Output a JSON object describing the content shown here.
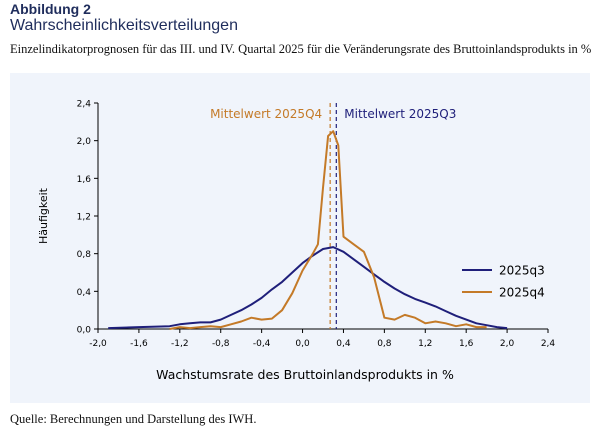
{
  "figure": {
    "label": "Abbildung 2",
    "title": "Wahrscheinlichkeitsverteilungen",
    "subtitle": "Einzelindikatorprognosen für das III. und IV. Quartal 2025 für die Veränderungsrate des Bruttoinlands­produkts in %",
    "source": "Quelle: Berechnungen und Darstellung des IWH."
  },
  "chart_data": {
    "type": "line",
    "xlabel": "Wachstumsrate des Bruttoinlandsprodukts in %",
    "ylabel": "Häufigkeit",
    "xlim": [
      -2.0,
      2.4
    ],
    "ylim": [
      0,
      2.4
    ],
    "xticks": [
      "-2,0",
      "-1,6",
      "-1,2",
      "-0,8",
      "-0,4",
      "0,0",
      "0,4",
      "0,8",
      "1,2",
      "1,6",
      "2,0",
      "2,4"
    ],
    "yticks": [
      "0,0",
      "0,4",
      "0,8",
      "1,2",
      "1,6",
      "2,0",
      "2,4"
    ],
    "legend_position": "right",
    "series": [
      {
        "name": "2025q3",
        "color": "#1f1f7a",
        "points": [
          [
            -1.9,
            0.01
          ],
          [
            -1.6,
            0.02
          ],
          [
            -1.3,
            0.03
          ],
          [
            -1.2,
            0.05
          ],
          [
            -1.1,
            0.06
          ],
          [
            -1.0,
            0.07
          ],
          [
            -0.9,
            0.07
          ],
          [
            -0.8,
            0.1
          ],
          [
            -0.7,
            0.15
          ],
          [
            -0.6,
            0.2
          ],
          [
            -0.5,
            0.26
          ],
          [
            -0.4,
            0.33
          ],
          [
            -0.3,
            0.42
          ],
          [
            -0.2,
            0.5
          ],
          [
            -0.1,
            0.6
          ],
          [
            0.0,
            0.7
          ],
          [
            0.1,
            0.78
          ],
          [
            0.2,
            0.85
          ],
          [
            0.3,
            0.87
          ],
          [
            0.4,
            0.82
          ],
          [
            0.5,
            0.74
          ],
          [
            0.6,
            0.66
          ],
          [
            0.7,
            0.58
          ],
          [
            0.8,
            0.5
          ],
          [
            0.9,
            0.43
          ],
          [
            1.0,
            0.37
          ],
          [
            1.1,
            0.32
          ],
          [
            1.2,
            0.28
          ],
          [
            1.3,
            0.24
          ],
          [
            1.4,
            0.19
          ],
          [
            1.5,
            0.14
          ],
          [
            1.6,
            0.1
          ],
          [
            1.7,
            0.06
          ],
          [
            1.8,
            0.04
          ],
          [
            1.9,
            0.02
          ],
          [
            2.0,
            0.01
          ]
        ]
      },
      {
        "name": "2025q4",
        "color": "#c47a28",
        "points": [
          [
            -1.3,
            0.0
          ],
          [
            -1.2,
            0.02
          ],
          [
            -1.1,
            0.01
          ],
          [
            -1.0,
            0.02
          ],
          [
            -0.9,
            0.03
          ],
          [
            -0.8,
            0.02
          ],
          [
            -0.7,
            0.05
          ],
          [
            -0.6,
            0.08
          ],
          [
            -0.5,
            0.12
          ],
          [
            -0.4,
            0.1
          ],
          [
            -0.3,
            0.11
          ],
          [
            -0.2,
            0.2
          ],
          [
            -0.1,
            0.38
          ],
          [
            0.0,
            0.62
          ],
          [
            0.1,
            0.8
          ],
          [
            0.15,
            0.9
          ],
          [
            0.2,
            1.5
          ],
          [
            0.25,
            2.05
          ],
          [
            0.3,
            2.1
          ],
          [
            0.35,
            1.95
          ],
          [
            0.4,
            0.98
          ],
          [
            0.5,
            0.9
          ],
          [
            0.6,
            0.82
          ],
          [
            0.7,
            0.55
          ],
          [
            0.8,
            0.12
          ],
          [
            0.9,
            0.1
          ],
          [
            1.0,
            0.15
          ],
          [
            1.1,
            0.12
          ],
          [
            1.2,
            0.06
          ],
          [
            1.3,
            0.08
          ],
          [
            1.4,
            0.06
          ],
          [
            1.5,
            0.03
          ],
          [
            1.6,
            0.05
          ],
          [
            1.7,
            0.02
          ],
          [
            1.8,
            0.02
          ]
        ]
      }
    ],
    "mean_lines": [
      {
        "label": "Mittelwert 2025Q4",
        "x": 0.27,
        "color": "#c47a28"
      },
      {
        "label": "Mittelwert 2025Q3",
        "x": 0.33,
        "color": "#1f1f7a"
      }
    ]
  }
}
